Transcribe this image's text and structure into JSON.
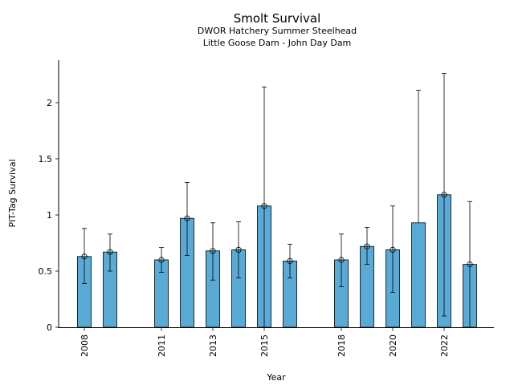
{
  "chart_data": {
    "type": "bar",
    "title": "Smolt Survival",
    "subtitle_lines": [
      "DWOR Hatchery Summer Steelhead",
      "Little Goose Dam - John Day Dam"
    ],
    "xlabel": "Year",
    "ylabel": "PIT-Tag Survival",
    "ylim": [
      0,
      2.4
    ],
    "yticks": [
      0,
      0.5,
      1,
      1.5,
      2
    ],
    "ytick_labels": [
      "0",
      "0.5",
      "1",
      "1.5",
      "2"
    ],
    "xticks": [
      2008,
      2011,
      2013,
      2015,
      2018,
      2020,
      2022
    ],
    "grid": false,
    "bar_color": "#5aaad6",
    "series": [
      {
        "x": [
          2008,
          2009,
          2011,
          2012,
          2013,
          2014,
          2015,
          2016,
          2018,
          2019,
          2020,
          2021,
          2022,
          2023
        ],
        "values": [
          0.63,
          0.67,
          0.6,
          0.97,
          0.68,
          0.69,
          1.08,
          0.59,
          0.6,
          0.72,
          0.69,
          0.93,
          1.18,
          0.56
        ],
        "lower": [
          0.39,
          0.5,
          0.49,
          0.64,
          0.42,
          0.44,
          0.0,
          0.44,
          0.36,
          0.56,
          0.31,
          null,
          0.1,
          0.0
        ],
        "upper": [
          0.88,
          0.83,
          0.71,
          1.29,
          0.93,
          0.94,
          2.14,
          0.74,
          0.83,
          0.89,
          1.08,
          2.11,
          2.26,
          1.12
        ],
        "markers": [
          true,
          true,
          true,
          true,
          true,
          true,
          true,
          true,
          true,
          true,
          true,
          false,
          true,
          true
        ]
      }
    ]
  }
}
